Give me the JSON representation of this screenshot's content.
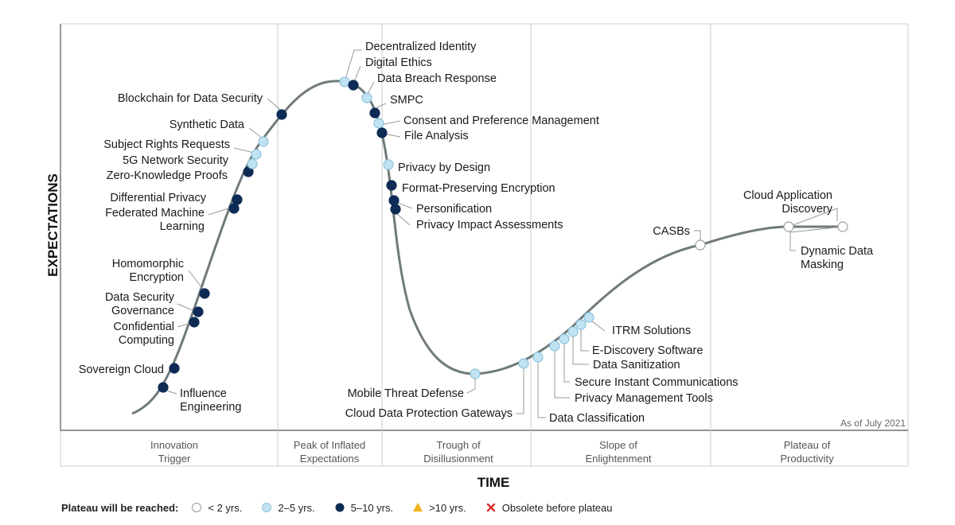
{
  "y_axis_title": "EXPECTATIONS",
  "x_axis_title": "TIME",
  "as_of": "As of July 2021",
  "phases": [
    {
      "line1": "Innovation",
      "line2": "Trigger"
    },
    {
      "line1": "Peak of Inflated",
      "line2": "Expectations"
    },
    {
      "line1": "Trough of",
      "line2": "Disillusionment"
    },
    {
      "line1": "Slope of",
      "line2": "Enlightenment"
    },
    {
      "line1": "Plateau of",
      "line2": "Productivity"
    }
  ],
  "legend": {
    "title": "Plateau will be reached:",
    "items": [
      {
        "key": "lt2",
        "label": "< 2 yrs."
      },
      {
        "key": "2to5",
        "label": "2–5 yrs."
      },
      {
        "key": "5to10",
        "label": "5–10 yrs."
      },
      {
        "key": "gt10",
        "label": ">10 yrs."
      },
      {
        "key": "obsolete",
        "label": "Obsolete before plateau"
      }
    ]
  },
  "colors": {
    "lt2": "#ffffff",
    "2to5": "#bfe3f2",
    "5to10": "#0d2b55",
    "gt10": "#f2b21b",
    "obsolete": "#d92b2b",
    "curve": "#707a7a",
    "grid": "#cccccc"
  },
  "technologies": [
    {
      "name": [
        "Influence",
        "Engineering"
      ],
      "timeframe": "5to10"
    },
    {
      "name": [
        "Sovereign Cloud"
      ],
      "timeframe": "5to10"
    },
    {
      "name": [
        "Confidential",
        "Computing"
      ],
      "timeframe": "5to10"
    },
    {
      "name": [
        "Data Security",
        "Governance"
      ],
      "timeframe": "5to10"
    },
    {
      "name": [
        "Homomorphic",
        "Encryption"
      ],
      "timeframe": "5to10"
    },
    {
      "name": [
        "Federated Machine",
        "Learning"
      ],
      "timeframe": "5to10"
    },
    {
      "name": [
        "Differential Privacy"
      ],
      "timeframe": "5to10"
    },
    {
      "name": [
        "Zero-Knowledge Proofs"
      ],
      "timeframe": "5to10"
    },
    {
      "name": [
        "5G Network Security"
      ],
      "timeframe": "2to5"
    },
    {
      "name": [
        "Subject Rights Requests"
      ],
      "timeframe": "2to5"
    },
    {
      "name": [
        "Synthetic Data"
      ],
      "timeframe": "2to5"
    },
    {
      "name": [
        "Blockchain for Data Security"
      ],
      "timeframe": "5to10"
    },
    {
      "name": [
        "Decentralized Identity"
      ],
      "timeframe": "2to5"
    },
    {
      "name": [
        "Digital Ethics"
      ],
      "timeframe": "5to10"
    },
    {
      "name": [
        "Data Breach Response"
      ],
      "timeframe": "2to5"
    },
    {
      "name": [
        "SMPC"
      ],
      "timeframe": "5to10"
    },
    {
      "name": [
        "Consent and Preference Management"
      ],
      "timeframe": "2to5"
    },
    {
      "name": [
        "File Analysis"
      ],
      "timeframe": "5to10"
    },
    {
      "name": [
        "Privacy by Design"
      ],
      "timeframe": "2to5"
    },
    {
      "name": [
        "Format-Preserving Encryption"
      ],
      "timeframe": "5to10"
    },
    {
      "name": [
        "Personification"
      ],
      "timeframe": "5to10"
    },
    {
      "name": [
        "Privacy Impact Assessments"
      ],
      "timeframe": "5to10"
    },
    {
      "name": [
        "Mobile Threat Defense"
      ],
      "timeframe": "2to5"
    },
    {
      "name": [
        "Cloud Data Protection Gateways"
      ],
      "timeframe": "2to5"
    },
    {
      "name": [
        "Data Classification"
      ],
      "timeframe": "2to5"
    },
    {
      "name": [
        "Privacy Management Tools"
      ],
      "timeframe": "2to5"
    },
    {
      "name": [
        "Secure Instant Communications"
      ],
      "timeframe": "2to5"
    },
    {
      "name": [
        "Data Sanitization"
      ],
      "timeframe": "2to5"
    },
    {
      "name": [
        "E-Discovery Software"
      ],
      "timeframe": "2to5"
    },
    {
      "name": [
        "ITRM Solutions"
      ],
      "timeframe": "2to5"
    },
    {
      "name": [
        "CASBs"
      ],
      "timeframe": "lt2"
    },
    {
      "name": [
        "Cloud Application",
        "Discovery"
      ],
      "timeframe": "lt2"
    },
    {
      "name": [
        "Dynamic Data",
        "Masking"
      ],
      "timeframe": "lt2"
    }
  ]
}
